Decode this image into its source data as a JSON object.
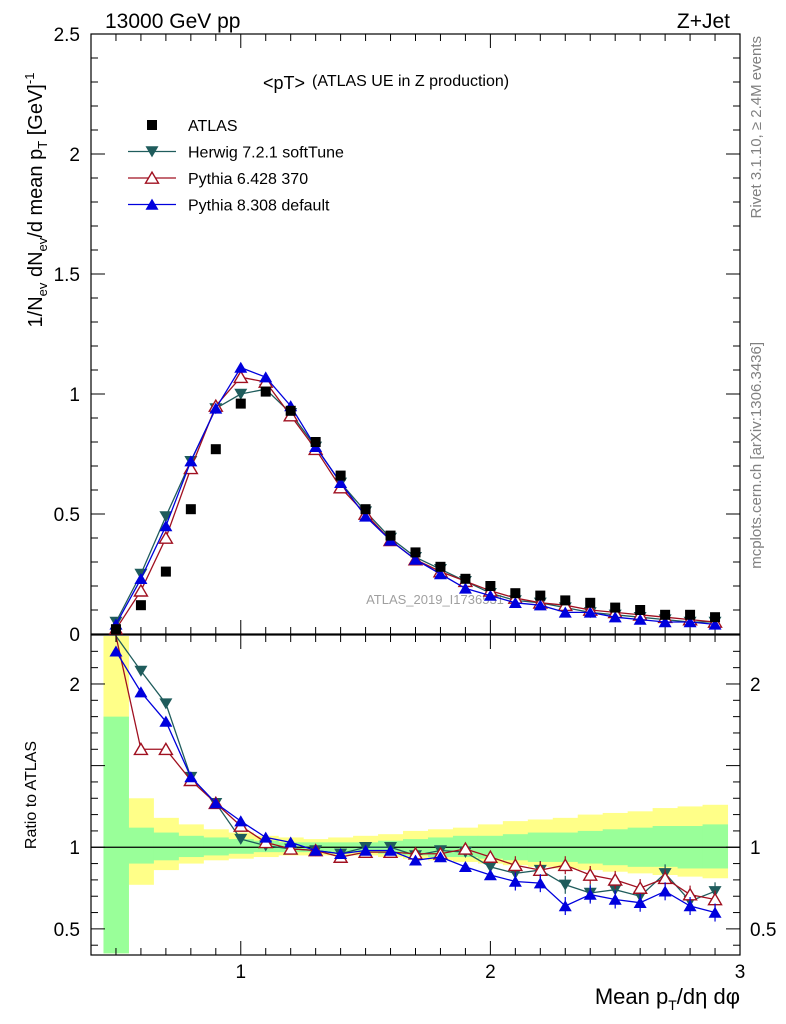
{
  "header": {
    "left": "13000 GeV pp",
    "right": "Z+Jet"
  },
  "side_text": {
    "rivet": "Rivet 3.1.10, ≥ 2.4M events",
    "mcplots": "mcplots.cern.ch [arXiv:1306.3436]"
  },
  "watermark": "ATLAS_2019_I1736531",
  "chart_data": [
    {
      "type": "line",
      "title_main": "<pT>",
      "title_sub": "(ATLAS UE in Z production)",
      "ylabel": "1/N_ev dN_ev/d mean p_T [GeV]^-1",
      "xlim": [
        0.4,
        3.0
      ],
      "ylim": [
        0,
        2.5
      ],
      "yticks": [
        "0",
        "0.5",
        "1",
        "1.5",
        "2",
        "2.5"
      ],
      "x": [
        0.5,
        0.6,
        0.7,
        0.8,
        0.9,
        1.0,
        1.1,
        1.2,
        1.3,
        1.4,
        1.5,
        1.6,
        1.7,
        1.8,
        1.9,
        2.0,
        2.1,
        2.2,
        2.3,
        2.4,
        2.5,
        2.6,
        2.7,
        2.8,
        2.9
      ],
      "legend_position": "top-left",
      "series": [
        {
          "name": "ATLAS",
          "marker": "square",
          "color": "#000000",
          "values": [
            0.02,
            0.12,
            0.26,
            0.52,
            0.77,
            0.96,
            1.01,
            0.93,
            0.8,
            0.66,
            0.52,
            0.41,
            0.34,
            0.28,
            0.23,
            0.2,
            0.17,
            0.16,
            0.14,
            0.13,
            0.11,
            0.1,
            0.08,
            0.08,
            0.07
          ]
        },
        {
          "name": "Herwig 7.2.1 softTune",
          "marker": "triangle-down",
          "color": "#1f5c5c",
          "values": [
            0.05,
            0.25,
            0.49,
            0.72,
            0.94,
            1.0,
            1.02,
            0.92,
            0.78,
            0.63,
            0.51,
            0.4,
            0.32,
            0.27,
            0.22,
            0.17,
            0.14,
            0.13,
            0.11,
            0.09,
            0.08,
            0.07,
            0.06,
            0.05,
            0.05
          ]
        },
        {
          "name": "Pythia 6.428 370",
          "marker": "triangle-up-open",
          "color": "#a01020",
          "values": [
            0.02,
            0.18,
            0.4,
            0.69,
            0.95,
            1.07,
            1.05,
            0.91,
            0.77,
            0.61,
            0.5,
            0.39,
            0.31,
            0.26,
            0.22,
            0.18,
            0.15,
            0.13,
            0.12,
            0.1,
            0.09,
            0.08,
            0.07,
            0.06,
            0.05
          ]
        },
        {
          "name": "Pythia 8.308 default",
          "marker": "triangle-up",
          "color": "#0000dd",
          "values": [
            0.04,
            0.23,
            0.45,
            0.72,
            0.94,
            1.11,
            1.07,
            0.95,
            0.78,
            0.63,
            0.49,
            0.39,
            0.31,
            0.25,
            0.19,
            0.16,
            0.13,
            0.12,
            0.09,
            0.09,
            0.07,
            0.06,
            0.05,
            0.05,
            0.04
          ]
        }
      ]
    },
    {
      "type": "line",
      "ylabel": "Ratio to ATLAS",
      "xlabel": "Mean p_T/dη dφ",
      "xlim": [
        0.4,
        3.0
      ],
      "ylim": [
        0.34,
        2.3
      ],
      "xticks": [
        "1",
        "2",
        "3"
      ],
      "yticks": [
        "0.5",
        "1",
        "2"
      ],
      "x": [
        0.5,
        0.6,
        0.7,
        0.8,
        0.9,
        1.0,
        1.1,
        1.2,
        1.3,
        1.4,
        1.5,
        1.6,
        1.7,
        1.8,
        1.9,
        2.0,
        2.1,
        2.2,
        2.3,
        2.4,
        2.5,
        2.6,
        2.7,
        2.8,
        2.9
      ],
      "reference_line": 1,
      "bands": {
        "green_lo": [
          0.35,
          0.9,
          0.92,
          0.94,
          0.95,
          0.96,
          0.97,
          0.97,
          0.97,
          0.97,
          0.97,
          0.96,
          0.95,
          0.94,
          0.94,
          0.93,
          0.92,
          0.91,
          0.91,
          0.9,
          0.89,
          0.88,
          0.88,
          0.87,
          0.87
        ],
        "green_hi": [
          1.8,
          1.12,
          1.09,
          1.07,
          1.06,
          1.05,
          1.04,
          1.03,
          1.03,
          1.03,
          1.03,
          1.04,
          1.05,
          1.06,
          1.07,
          1.07,
          1.08,
          1.09,
          1.09,
          1.1,
          1.11,
          1.12,
          1.13,
          1.13,
          1.14
        ],
        "yellow_lo": [
          0.35,
          0.77,
          0.86,
          0.9,
          0.92,
          0.93,
          0.94,
          0.95,
          0.95,
          0.95,
          0.95,
          0.94,
          0.93,
          0.92,
          0.91,
          0.9,
          0.89,
          0.88,
          0.87,
          0.86,
          0.85,
          0.84,
          0.83,
          0.82,
          0.81
        ],
        "yellow_hi": [
          2.35,
          1.3,
          1.18,
          1.14,
          1.11,
          1.09,
          1.07,
          1.06,
          1.05,
          1.06,
          1.07,
          1.08,
          1.1,
          1.11,
          1.12,
          1.14,
          1.16,
          1.17,
          1.18,
          1.2,
          1.21,
          1.22,
          1.24,
          1.25,
          1.26
        ]
      },
      "series": [
        {
          "name": "Herwig 7.2.1 softTune",
          "color": "#1f5c5c",
          "values": [
            2.35,
            2.08,
            1.88,
            1.43,
            1.27,
            1.05,
            1.01,
            0.99,
            0.98,
            0.96,
            1.0,
            1.0,
            0.95,
            0.98,
            0.97,
            0.88,
            0.84,
            0.86,
            0.77,
            0.72,
            0.74,
            0.7,
            0.84,
            0.67,
            0.73
          ]
        },
        {
          "name": "Pythia 6.428 370",
          "color": "#a01020",
          "values": [
            2.3,
            1.6,
            1.6,
            1.41,
            1.27,
            1.13,
            1.03,
            0.99,
            0.98,
            0.94,
            0.97,
            0.97,
            0.96,
            0.96,
            0.99,
            0.94,
            0.89,
            0.86,
            0.89,
            0.83,
            0.8,
            0.75,
            0.81,
            0.71,
            0.68
          ]
        },
        {
          "name": "Pythia 8.308 default",
          "color": "#0000dd",
          "values": [
            2.2,
            1.95,
            1.77,
            1.43,
            1.27,
            1.16,
            1.06,
            1.03,
            0.98,
            0.96,
            0.98,
            0.98,
            0.92,
            0.94,
            0.88,
            0.83,
            0.79,
            0.78,
            0.64,
            0.71,
            0.68,
            0.66,
            0.73,
            0.64,
            0.6
          ]
        }
      ]
    }
  ]
}
